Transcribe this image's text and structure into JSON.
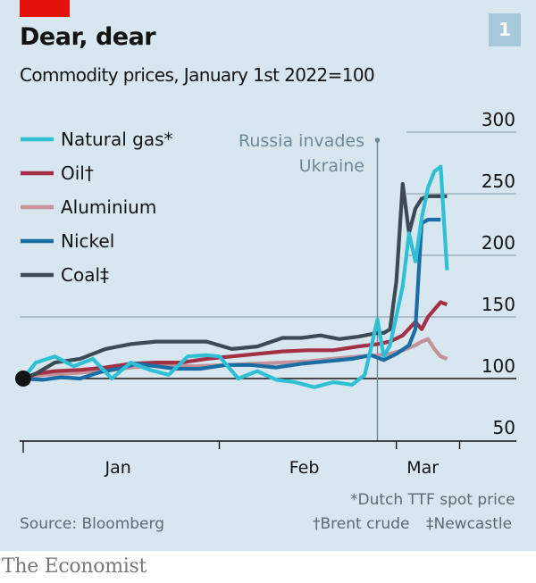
{
  "header": {
    "title": "Dear, dear",
    "subtitle": "Commodity prices, January 1st 2022=100",
    "chart_number": "1"
  },
  "footer": {
    "source": "Source: Bloomberg",
    "note_gas": "*Dutch TTF spot price",
    "note_oil": "†Brent crude",
    "note_coal": "‡Newcastle",
    "publisher": "The Economist"
  },
  "colors": {
    "brand_red": "#e3120b",
    "natural_gas": "#2fc0d6",
    "oil": "#a33045",
    "aluminium": "#c5919b",
    "nickel": "#1a6ea3",
    "coal": "#3d4a53",
    "annotation": "#6e8a99"
  },
  "chart_data": {
    "type": "line",
    "title": "Dear, dear",
    "subtitle": "Commodity prices, January 1st 2022=100",
    "xlabel": "",
    "ylabel": "",
    "x_unit": "days since January 1st 2022",
    "x_ticks": [
      {
        "day": 0,
        "label": ""
      },
      {
        "day": 31,
        "label": ""
      },
      {
        "day": 59,
        "label": ""
      },
      {
        "day": 69,
        "label": ""
      }
    ],
    "x_labels": [
      {
        "day": 15,
        "label": "Jan"
      },
      {
        "day": 45,
        "label": "Feb"
      },
      {
        "day": 64,
        "label": "Mar"
      }
    ],
    "ylim": [
      50,
      300
    ],
    "y_ticks": [
      50,
      100,
      150,
      200,
      250,
      300
    ],
    "baseline": 100,
    "grid": true,
    "legend_position": "top-left",
    "annotation": {
      "day": 56,
      "label_line1": "Russia invades",
      "label_line2": "Ukraine"
    },
    "start_marker": {
      "day": 0,
      "value": 100
    },
    "series": [
      {
        "name": "Natural gas*",
        "key": "natural_gas",
        "x": [
          0,
          2,
          5,
          8,
          11,
          14,
          17,
          20,
          23,
          26,
          29,
          31,
          34,
          37,
          40,
          43,
          46,
          49,
          52,
          54,
          55,
          56,
          57,
          58,
          60,
          61,
          62,
          63,
          64,
          65,
          66,
          67
        ],
        "values": [
          100,
          113,
          118,
          110,
          116,
          100,
          113,
          107,
          103,
          118,
          119,
          118,
          100,
          106,
          99,
          97,
          93,
          97,
          95,
          103,
          125,
          148,
          118,
          127,
          175,
          218,
          195,
          230,
          255,
          268,
          272,
          188
        ]
      },
      {
        "name": "Oil†",
        "key": "oil",
        "x": [
          0,
          2,
          5,
          9,
          13,
          17,
          21,
          25,
          29,
          33,
          37,
          41,
          45,
          49,
          53,
          56,
          58,
          60,
          62,
          63,
          64,
          66,
          67
        ],
        "values": [
          100,
          104,
          106,
          107,
          109,
          112,
          113,
          113,
          116,
          118,
          120,
          122,
          123,
          123,
          126,
          128,
          130,
          135,
          146,
          140,
          150,
          162,
          160
        ]
      },
      {
        "name": "Aluminium",
        "key": "aluminium",
        "x": [
          0,
          3,
          7,
          12,
          17,
          22,
          27,
          32,
          37,
          41,
          45,
          49,
          53,
          56,
          58,
          60,
          62,
          63,
          64,
          65,
          66,
          67
        ],
        "values": [
          100,
          103,
          104,
          106,
          109,
          111,
          110,
          111,
          112,
          113,
          114,
          116,
          118,
          119,
          120,
          123,
          127,
          130,
          132,
          124,
          118,
          116
        ]
      },
      {
        "name": "Nickel",
        "key": "nickel",
        "x": [
          0,
          3,
          6,
          9,
          12,
          15,
          18,
          21,
          24,
          28,
          32,
          36,
          40,
          44,
          48,
          52,
          55,
          57,
          59,
          61,
          62,
          63,
          64,
          65,
          66
        ],
        "values": [
          100,
          99,
          101,
          100,
          105,
          108,
          112,
          110,
          108,
          108,
          111,
          111,
          109,
          112,
          114,
          116,
          119,
          115,
          120,
          127,
          140,
          226,
          229,
          229,
          229
        ]
      },
      {
        "name": "Coal‡",
        "key": "coal",
        "x": [
          0,
          2,
          5,
          9,
          13,
          17,
          21,
          25,
          29,
          33,
          37,
          41,
          44,
          47,
          50,
          53,
          56,
          57,
          58,
          59,
          60,
          61,
          62,
          63,
          64,
          67
        ],
        "values": [
          100,
          104,
          113,
          116,
          124,
          128,
          130,
          130,
          130,
          124,
          126,
          133,
          133,
          135,
          132,
          134,
          137,
          137,
          140,
          179,
          258,
          218,
          238,
          246,
          248,
          248
        ]
      }
    ]
  }
}
